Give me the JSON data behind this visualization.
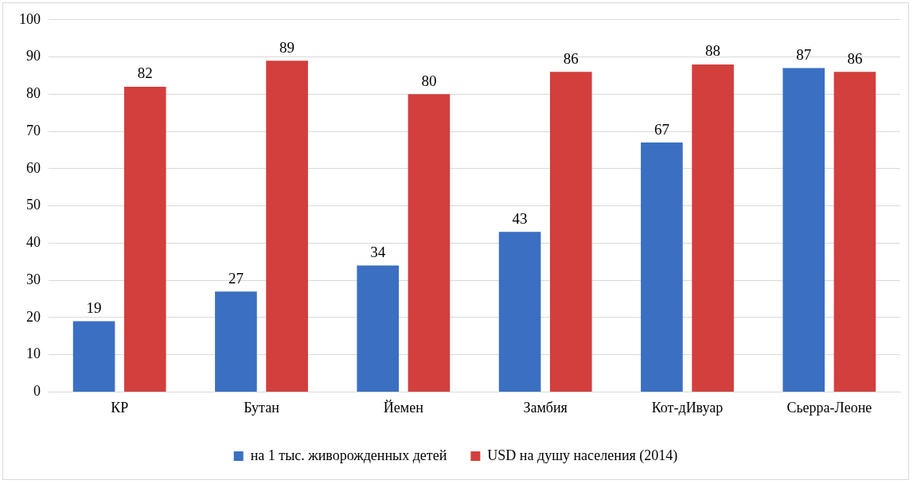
{
  "chart_data": {
    "type": "bar",
    "categories": [
      "КР",
      "Бутан",
      "Йемен",
      "Замбия",
      "Кот-дИвуар",
      "Сьерра-Леоне"
    ],
    "series": [
      {
        "name": "на 1 тыс. живорожденных детей",
        "color": "#3b6fc2",
        "values": [
          19,
          27,
          34,
          43,
          67,
          87
        ]
      },
      {
        "name": "USD на душу населения (2014)",
        "color": "#d23f3d",
        "values": [
          82,
          89,
          80,
          86,
          88,
          86
        ]
      }
    ],
    "ylim": [
      0,
      100
    ],
    "yticks": [
      0,
      10,
      20,
      30,
      40,
      50,
      60,
      70,
      80,
      90,
      100
    ],
    "grid": "y",
    "legend": "bottom",
    "data_labels": true
  }
}
